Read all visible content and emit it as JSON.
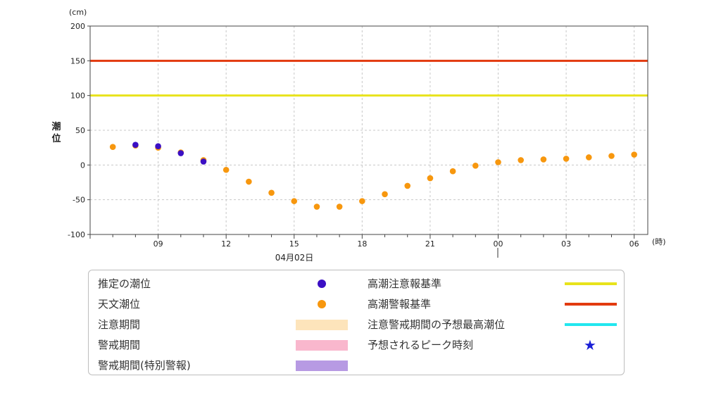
{
  "chart_data": {
    "type": "scatter",
    "y_unit": "(cm)",
    "x_unit": "(時)",
    "ylabel": "潮位",
    "date_label": "04月02日",
    "ylim": [
      -100,
      200
    ],
    "yticks": [
      -100,
      -50,
      0,
      50,
      100,
      150,
      200
    ],
    "x_hours_range": [
      6,
      30.6
    ],
    "xticks": [
      {
        "hour": 9,
        "label": "09"
      },
      {
        "hour": 12,
        "label": "12"
      },
      {
        "hour": 15,
        "label": "15"
      },
      {
        "hour": 18,
        "label": "18"
      },
      {
        "hour": 21,
        "label": "21"
      },
      {
        "hour": 24,
        "label": "00"
      },
      {
        "hour": 27,
        "label": "03"
      },
      {
        "hour": 30,
        "label": "06"
      }
    ],
    "thresholds": [
      {
        "name": "高潮注意報基準",
        "value": 100,
        "color": "#e8e31c"
      },
      {
        "name": "高潮警報基準",
        "value": 150,
        "color": "#e23a0f"
      }
    ],
    "series": [
      {
        "name": "天文潮位",
        "color": "#f7970e",
        "points": [
          {
            "hour": 7,
            "value": 26
          },
          {
            "hour": 8,
            "value": 28
          },
          {
            "hour": 9,
            "value": 25
          },
          {
            "hour": 10,
            "value": 18
          },
          {
            "hour": 11,
            "value": 7
          },
          {
            "hour": 12,
            "value": -7
          },
          {
            "hour": 13,
            "value": -24
          },
          {
            "hour": 14,
            "value": -40
          },
          {
            "hour": 15,
            "value": -52
          },
          {
            "hour": 16,
            "value": -60
          },
          {
            "hour": 17,
            "value": -60
          },
          {
            "hour": 18,
            "value": -52
          },
          {
            "hour": 19,
            "value": -42
          },
          {
            "hour": 20,
            "value": -30
          },
          {
            "hour": 21,
            "value": -19
          },
          {
            "hour": 22,
            "value": -9
          },
          {
            "hour": 23,
            "value": -1
          },
          {
            "hour": 24,
            "value": 4
          },
          {
            "hour": 25,
            "value": 7
          },
          {
            "hour": 26,
            "value": 8
          },
          {
            "hour": 27,
            "value": 9
          },
          {
            "hour": 28,
            "value": 11
          },
          {
            "hour": 29,
            "value": 13
          },
          {
            "hour": 30,
            "value": 15
          }
        ]
      },
      {
        "name": "推定の潮位",
        "color": "#3b0fc4",
        "points": [
          {
            "hour": 8,
            "value": 29
          },
          {
            "hour": 9,
            "value": 27
          },
          {
            "hour": 10,
            "value": 17
          },
          {
            "hour": 11,
            "value": 5
          }
        ]
      }
    ]
  },
  "legend": {
    "left": [
      {
        "label": "推定の潮位",
        "kind": "dot",
        "color": "#3b0fc4"
      },
      {
        "label": "天文潮位",
        "kind": "dot",
        "color": "#f7970e"
      },
      {
        "label": "注意期間",
        "kind": "bar",
        "color": "#fde4bb"
      },
      {
        "label": "警戒期間",
        "kind": "bar",
        "color": "#f9b7cd"
      },
      {
        "label": "警戒期間(特別警報)",
        "kind": "bar",
        "color": "#b79ae3"
      }
    ],
    "right": [
      {
        "label": "高潮注意報基準",
        "kind": "line",
        "color": "#e8e31c"
      },
      {
        "label": "高潮警報基準",
        "kind": "line",
        "color": "#e23a0f"
      },
      {
        "label": "注意警戒期間の予想最高潮位",
        "kind": "line",
        "color": "#22e7ef"
      },
      {
        "label": "予想されるピーク時刻",
        "kind": "star",
        "color": "#1a1fd6"
      }
    ]
  }
}
